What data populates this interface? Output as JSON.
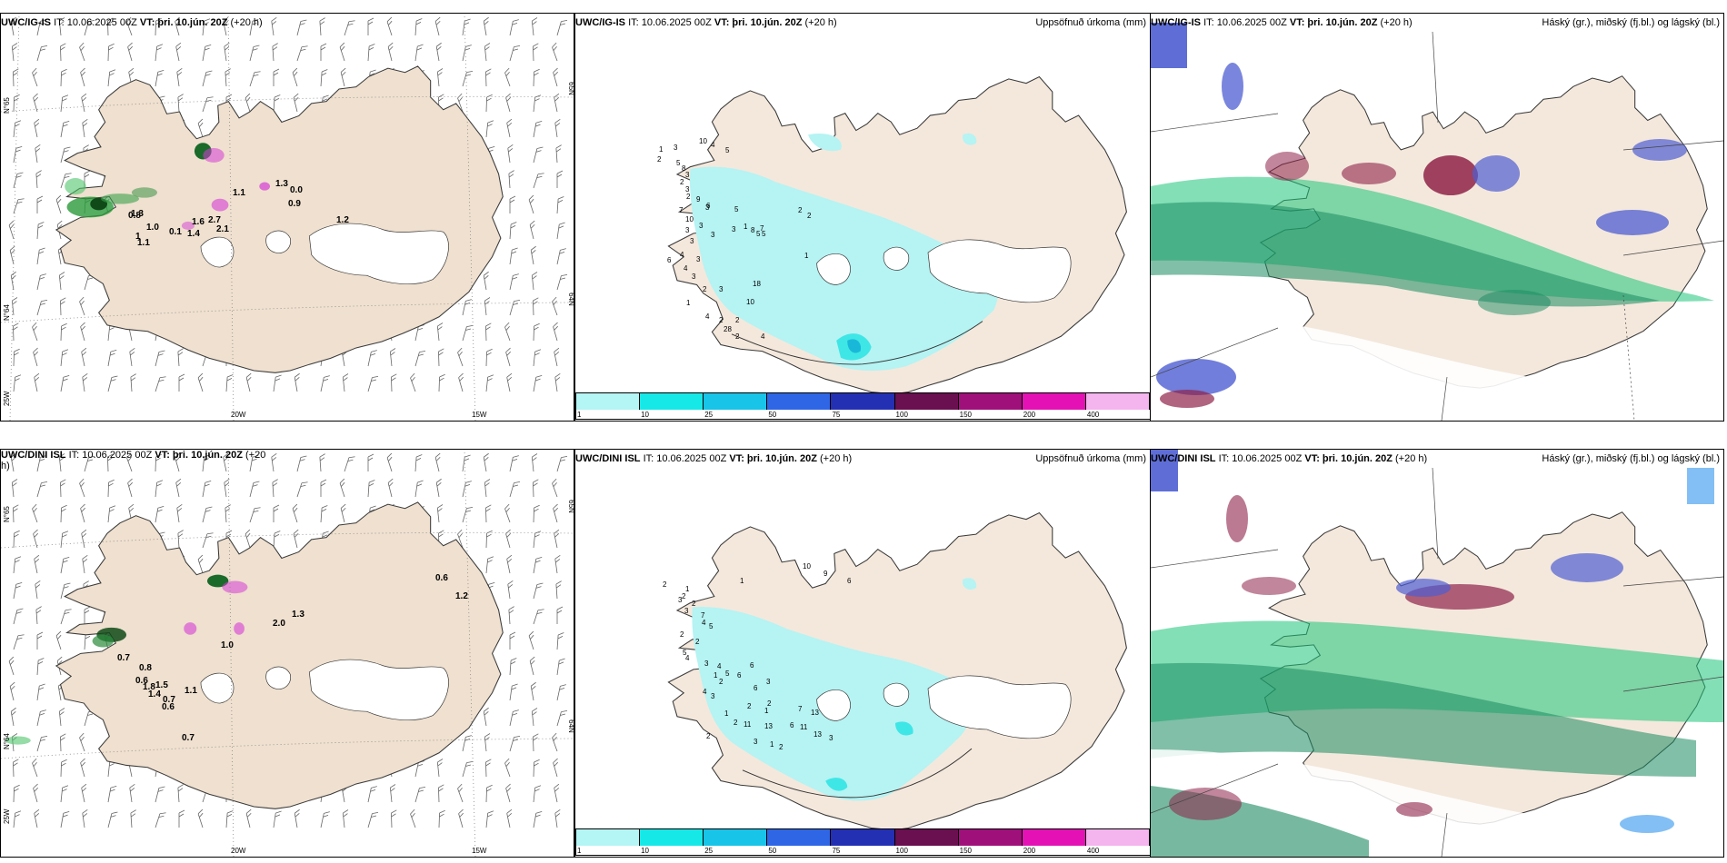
{
  "rows": [
    {
      "wind": {
        "title_model": "UWC/IG-IS",
        "title_it": "IT: 10.06.2025 00Z",
        "title_vt_label": "VT:",
        "title_vt": "þri. 10.jún. 20Z",
        "title_lead": "(+20 h)",
        "lat_left_1": "N°65",
        "lat_left_2": "N°64",
        "lat_left_3": "25W",
        "lat_right_1": "65N",
        "lat_right_2": "64N",
        "lon_1": "20W",
        "lon_2": "15W",
        "values": [
          "1.1",
          "1.3",
          "0.0",
          "0.9",
          "1.2",
          "0.8",
          "1.3",
          "0.1",
          "1.4",
          "1.6",
          "2.7",
          "2.1",
          "1.1",
          "1",
          "1.0"
        ]
      },
      "precip": {
        "title_model": "UWC/IG-IS",
        "title_it": "IT: 10.06.2025 00Z",
        "title_vt_label": "VT:",
        "title_vt": "þri. 10.jún. 20Z",
        "title_lead": "(+20 h)",
        "right_title": "Uppsöfnuð úrkoma (mm)",
        "values": [
          "10",
          "4",
          "5",
          "1",
          "3",
          "2",
          "5",
          "8",
          "3",
          "2",
          "3",
          "2",
          "9",
          "7",
          "10",
          "3",
          "3",
          "6",
          "5",
          "3",
          "3",
          "7",
          "8",
          "5",
          "2",
          "2",
          "5",
          "3",
          "3",
          "6",
          "4",
          "3",
          "4",
          "3",
          "2",
          "3",
          "10",
          "18",
          "1",
          "1",
          "4",
          "2",
          "2",
          "28",
          "2",
          "4",
          "1"
        ]
      },
      "clouds": {
        "title_model": "UWC/IG-IS",
        "title_it": "IT: 10.06.2025 00Z",
        "title_vt_label": "VT:",
        "title_vt": "þri. 10.jún. 20Z",
        "title_lead": "(+20 h)",
        "right_title": "Háský (gr.), miðský (fj.bl.) og lágský (bl.)"
      }
    },
    {
      "wind": {
        "title_model": "UWC/DINI ISL",
        "title_it": "IT: 10.06.2025 00Z",
        "title_vt_label": "VT:",
        "title_vt": "þri. 10.jún. 20Z",
        "title_lead": "(+20 h)",
        "lat_left_1": "N°65",
        "lat_left_2": "N°64",
        "lat_left_3": "25W",
        "lat_right_1": "65N",
        "lat_right_2": "64N",
        "lon_1": "20W",
        "lon_2": "15W",
        "values": [
          "0.6",
          "1.2",
          "2.0",
          "1.3",
          "1.0",
          "0.7",
          "0.8",
          "0.6",
          "1.8",
          "1.5",
          "0.7",
          "0.6",
          "1.4",
          "1.1",
          "0.7"
        ]
      },
      "precip": {
        "title_model": "UWC/DINI ISL",
        "title_it": "IT: 10.06.2025 00Z",
        "title_vt_label": "VT:",
        "title_vt": "þri. 10.jún. 20Z",
        "title_lead": "(+20 h)",
        "right_title": "Uppsöfnuð úrkoma (mm)",
        "values": [
          "10",
          "2",
          "9",
          "6",
          "1",
          "1",
          "2",
          "3",
          "2",
          "3",
          "7",
          "4",
          "5",
          "2",
          "2",
          "5",
          "4",
          "3",
          "4",
          "5",
          "6",
          "6",
          "3",
          "6",
          "2",
          "1",
          "2",
          "7",
          "13",
          "6",
          "11",
          "13",
          "3",
          "1",
          "2",
          "4",
          "1",
          "2",
          "2",
          "3",
          "11",
          "13",
          "2",
          "1",
          "3"
        ]
      },
      "clouds": {
        "title_model": "UWC/DINI ISL",
        "title_it": "IT: 10.06.2025 00Z",
        "title_vt_label": "VT:",
        "title_vt": "þri. 10.jún. 20Z",
        "title_lead": "(+20 h)",
        "right_title": "Háský (gr.), miðský (fj.bl.) og lágský (bl.)"
      }
    }
  ],
  "colorbar": {
    "ticks": [
      "1",
      "10",
      "25",
      "50",
      "75",
      "100",
      "150",
      "200",
      "400"
    ],
    "colors": [
      "#b4f5f5",
      "#16e8e8",
      "#18c4e8",
      "#2f66e6",
      "#2430b4",
      "#6a0f50",
      "#a0107a",
      "#e412b4",
      "#f4b4ee"
    ]
  },
  "colors": {
    "land": "#f4e8dc",
    "land_wind": "#efe0cf",
    "coast": "#3a3a3a",
    "glacier": "#ffffff",
    "precip_light": "#b6f3f3",
    "precip_mid": "#3fe6e6",
    "cloud_high": "#1e9e66",
    "cloud_mid": "#4e5ed2",
    "cloud_low": "#8e2248",
    "wind_green": "#0f6a22",
    "wind_magenta": "#d63cd6"
  }
}
